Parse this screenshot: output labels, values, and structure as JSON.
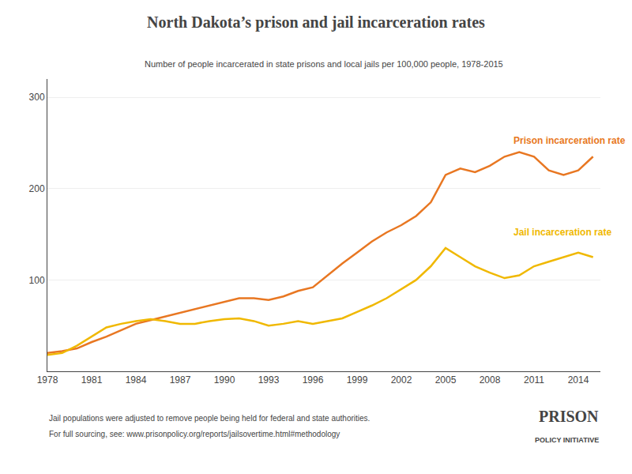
{
  "chart_data": {
    "type": "line",
    "title": "North Dakota’s prison and jail incarceration rates",
    "subtitle": "Number of people incarcerated in state prisons and local jails per 100,000 people, 1978-2015",
    "annotations": [
      "Jail populations were adjusted to remove people being held for federal and state authorities.",
      "For full sourcing, see: www.prisonpolicy.org/reports/jailsovertime.html#methodology",
      "PRISON",
      "POLICY INITIATIVE"
    ],
    "x": [
      1978,
      1979,
      1980,
      1981,
      1982,
      1983,
      1984,
      1985,
      1986,
      1987,
      1988,
      1989,
      1990,
      1991,
      1992,
      1993,
      1994,
      1995,
      1996,
      1997,
      1998,
      1999,
      2000,
      2001,
      2002,
      2003,
      2004,
      2005,
      2006,
      2007,
      2008,
      2009,
      2010,
      2011,
      2012,
      2013,
      2014,
      2015
    ],
    "series": [
      {
        "name": "Prison incarceration rate",
        "color": "#e87722",
        "values": [
          20,
          22,
          25,
          32,
          38,
          45,
          52,
          56,
          60,
          64,
          68,
          72,
          76,
          80,
          80,
          78,
          82,
          88,
          92,
          105,
          118,
          130,
          142,
          152,
          160,
          170,
          185,
          215,
          222,
          218,
          225,
          235,
          240,
          235,
          220,
          215,
          220,
          235
        ]
      },
      {
        "name": "Jail incarceration rate",
        "color": "#f0b800",
        "values": [
          18,
          20,
          28,
          38,
          48,
          52,
          55,
          57,
          55,
          52,
          52,
          55,
          57,
          58,
          55,
          50,
          52,
          55,
          52,
          55,
          58,
          65,
          72,
          80,
          90,
          100,
          115,
          135,
          125,
          115,
          108,
          102,
          105,
          115,
          120,
          125,
          130,
          125
        ]
      }
    ],
    "xlim": [
      1978,
      2015.5
    ],
    "xticks": [
      1978,
      1981,
      1984,
      1987,
      1990,
      1993,
      1996,
      1999,
      2002,
      2005,
      2008,
      2011,
      2014
    ],
    "ylim": [
      0,
      320
    ],
    "yticks": [
      100,
      200,
      300
    ],
    "grid": true
  }
}
